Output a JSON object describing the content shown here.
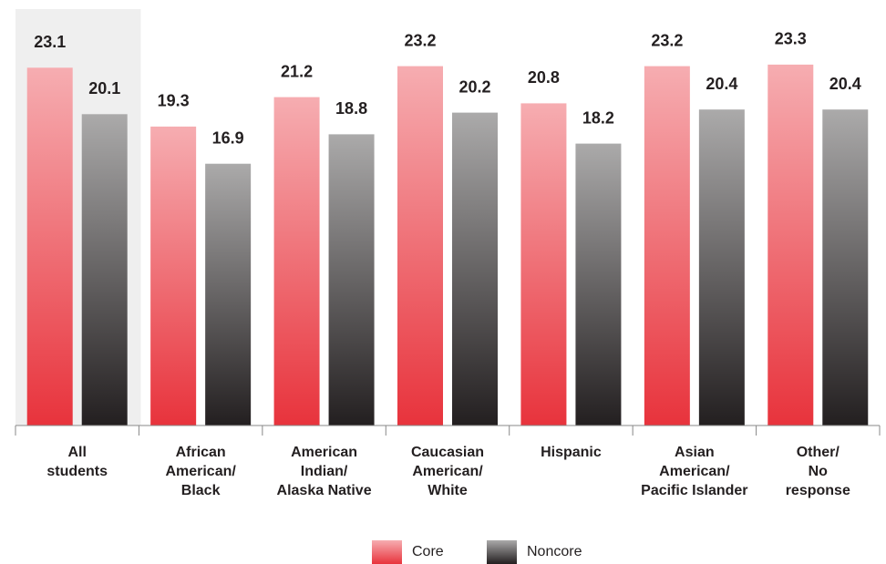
{
  "chart_data": {
    "type": "bar",
    "categories": [
      "All\nstudents",
      "African\nAmerican/\nBlack",
      "American\nIndian/\nAlaska Native",
      "Caucasian\nAmerican/\nWhite",
      "Hispanic",
      "Asian\nAmerican/\nPacific Islander",
      "Other/\nNo\nresponse"
    ],
    "series": [
      {
        "name": "Core",
        "color": "#e8333c",
        "values": [
          23.1,
          19.3,
          21.2,
          23.2,
          20.8,
          23.2,
          23.3
        ]
      },
      {
        "name": "Noncore",
        "color": "#231f20",
        "values": [
          20.1,
          16.9,
          18.8,
          20.2,
          18.2,
          20.4,
          20.4
        ]
      }
    ],
    "ylim": [
      0,
      27
    ],
    "legend": "bottom"
  }
}
